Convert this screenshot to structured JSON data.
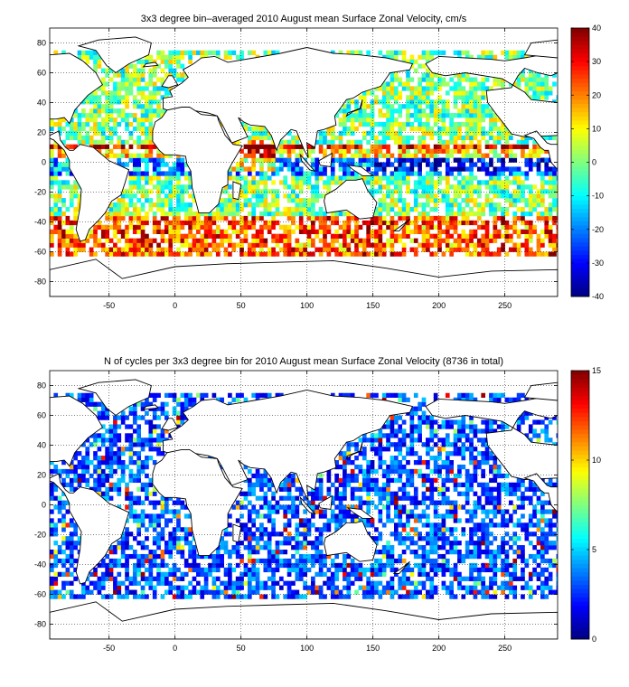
{
  "chart_data": [
    {
      "type": "heatmap",
      "title": "3x3 degree bin–averaged 2010 August mean Surface Zonal Velocity, cm/s",
      "xlim": [
        -95,
        290
      ],
      "ylim": [
        -90,
        90
      ],
      "x_ticks": [
        -50,
        0,
        50,
        100,
        150,
        200,
        250
      ],
      "y_ticks": [
        80,
        60,
        40,
        20,
        0,
        -20,
        -40,
        -60,
        -80
      ],
      "grid": true,
      "bin_size_deg": 3,
      "colorbar": {
        "min": -40,
        "max": 40,
        "ticks": [
          40,
          30,
          20,
          10,
          0,
          -10,
          -20,
          -30,
          -40
        ],
        "colormap": "jet"
      }
    },
    {
      "type": "heatmap",
      "title": "N of cycles per 3x3 degree bin for 2010 August mean Surface Zonal Velocity (8736 in total)",
      "xlim": [
        -95,
        290
      ],
      "ylim": [
        -90,
        90
      ],
      "x_ticks": [
        -50,
        0,
        50,
        100,
        150,
        200,
        250
      ],
      "y_ticks": [
        80,
        60,
        40,
        20,
        0,
        -20,
        -40,
        -60,
        -80
      ],
      "grid": true,
      "bin_size_deg": 3,
      "colorbar": {
        "min": 0,
        "max": 15,
        "ticks": [
          15,
          10,
          5,
          0
        ],
        "colormap": "jet"
      }
    }
  ]
}
